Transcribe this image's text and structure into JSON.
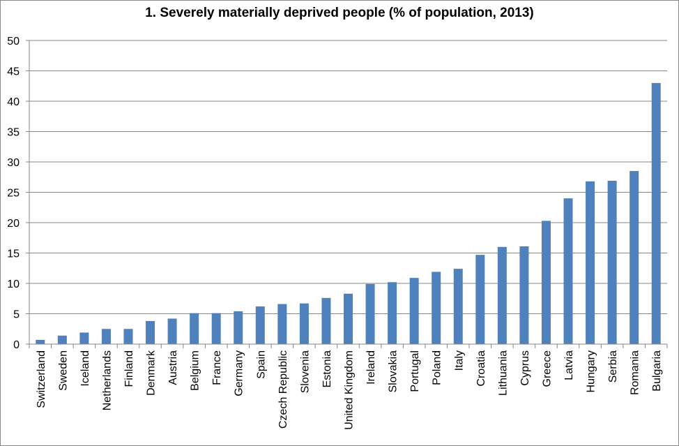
{
  "chart_data": {
    "type": "bar",
    "title": "1. Severely materially deprived people (% of population, 2013)",
    "xlabel": "",
    "ylabel": "",
    "ylim": [
      0,
      50
    ],
    "yticks": [
      0,
      5,
      10,
      15,
      20,
      25,
      30,
      35,
      40,
      45,
      50
    ],
    "grid": true,
    "legend": "none",
    "bar_color": "#4F81BD",
    "categories": [
      "Switzerland",
      "Sweden",
      "Iceland",
      "Netherlands",
      "Finland",
      "Denmark",
      "Austria",
      "Belgium",
      "France",
      "Germany",
      "Spain",
      "Czech Republic",
      "Slovenia",
      "Estonia",
      "United Kingdom",
      "Ireland",
      "Slovakia",
      "Portugal",
      "Poland",
      "Italy",
      "Croatia",
      "Lithuania",
      "Cyprus",
      "Greece",
      "Latvia",
      "Hungary",
      "Serbia",
      "Romania",
      "Bulgaria"
    ],
    "values": [
      0.7,
      1.4,
      1.9,
      2.5,
      2.5,
      3.8,
      4.2,
      5.1,
      5.1,
      5.4,
      6.2,
      6.6,
      6.7,
      7.6,
      8.3,
      9.9,
      10.2,
      10.9,
      11.9,
      12.4,
      14.7,
      16.0,
      16.1,
      20.3,
      24.0,
      26.8,
      26.9,
      28.5,
      43.0
    ]
  }
}
